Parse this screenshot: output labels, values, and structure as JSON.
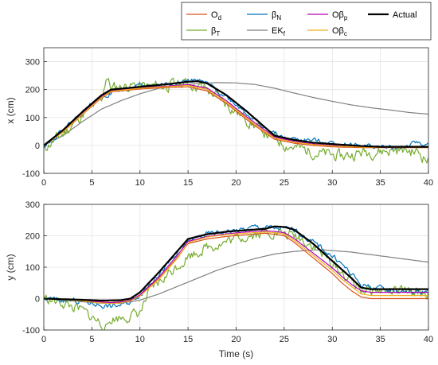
{
  "chart_data": {
    "type": "line",
    "legend": {
      "placement": "top-right",
      "entries": [
        {
          "main": "O",
          "sub": "d",
          "color": "#d95319",
          "width": 1.3
        },
        {
          "main": "β",
          "sub": "N",
          "color": "#0072bd",
          "width": 1.3
        },
        {
          "main": "Oβ",
          "sub": "p",
          "color": "#b300b3",
          "width": 1.3
        },
        {
          "main": "Actual",
          "sub": "",
          "color": "#000000",
          "width": 2.2
        },
        {
          "main": "β",
          "sub": "T",
          "color": "#77ac30",
          "width": 1.3
        },
        {
          "main": "EK",
          "sub": "f",
          "color": "#808080",
          "width": 1.3
        },
        {
          "main": "Oβ",
          "sub": "c",
          "color": "#edb120",
          "width": 1.3
        }
      ]
    },
    "panels": [
      {
        "ylabel": "x (cm)",
        "xlabel": "",
        "xlim": [
          0,
          40
        ],
        "ylim": [
          -100,
          350
        ],
        "xticks": [
          "0",
          "5",
          "10",
          "15",
          "20",
          "25",
          "30",
          "35",
          "40"
        ],
        "yticks": [
          "-100",
          "0",
          "100",
          "200",
          "300"
        ],
        "ytick_values": [
          -100,
          0,
          100,
          200,
          300
        ],
        "grid": true,
        "series": [
          {
            "key": "EKf",
            "color": "#808080",
            "noise": 0,
            "seed": 1,
            "x": [
              0,
              2,
              4,
              6,
              8,
              10,
              12,
              14,
              16,
              18,
              20,
              22,
              24,
              26,
              28,
              30,
              32,
              34,
              36,
              38,
              40
            ],
            "y": [
              0,
              35,
              85,
              130,
              160,
              185,
              205,
              215,
              222,
              225,
              224,
              218,
              205,
              188,
              172,
              158,
              145,
              135,
              127,
              118,
              112
            ]
          },
          {
            "key": "betaT",
            "color": "#77ac30",
            "noise": 22,
            "seed": 11,
            "x": [
              0,
              2,
              4,
              6,
              6.5,
              7,
              9,
              11,
              13,
              15,
              17,
              19,
              21,
              23,
              25,
              27,
              29,
              31,
              33,
              35,
              37,
              39,
              40
            ],
            "y": [
              -10,
              40,
              110,
              160,
              250,
              205,
              215,
              210,
              215,
              225,
              200,
              150,
              95,
              45,
              5,
              -15,
              -30,
              -40,
              -25,
              -20,
              -15,
              -25,
              -55
            ]
          },
          {
            "key": "betaN",
            "color": "#0072bd",
            "noise": 9,
            "seed": 22,
            "x": [
              0,
              2,
              4,
              6,
              8,
              10,
              12,
              14,
              15.5,
              17,
              19,
              21,
              23,
              25,
              27,
              29,
              31,
              33,
              35,
              37,
              39,
              40
            ],
            "y": [
              0,
              55,
              120,
              175,
              200,
              210,
              218,
              225,
              235,
              220,
              175,
              120,
              60,
              25,
              20,
              15,
              5,
              0,
              -5,
              -10,
              10,
              0
            ]
          },
          {
            "key": "Od",
            "color": "#d95319",
            "noise": 0,
            "seed": 2,
            "x": [
              0,
              2,
              4,
              6,
              7,
              10,
              13,
              15,
              17,
              19,
              21,
              23,
              24,
              26,
              28,
              30,
              32,
              34,
              36,
              38,
              40
            ],
            "y": [
              0,
              48,
              110,
              170,
              192,
              202,
              208,
              210,
              195,
              150,
              95,
              45,
              22,
              8,
              0,
              -5,
              -7,
              -8,
              -8,
              -8,
              -8
            ]
          },
          {
            "key": "Obp",
            "color": "#b300b3",
            "noise": 0,
            "seed": 3,
            "x": [
              0,
              2,
              4,
              6,
              7,
              10,
              13,
              15,
              17,
              19,
              21,
              23,
              24,
              26,
              28,
              30,
              32,
              34,
              36,
              38,
              40
            ],
            "y": [
              0,
              50,
              115,
              175,
              196,
              207,
              213,
              218,
              205,
              160,
              105,
              55,
              30,
              15,
              5,
              0,
              -3,
              -4,
              -5,
              -5,
              -5
            ]
          },
          {
            "key": "Obc",
            "color": "#edb120",
            "noise": 0,
            "seed": 4,
            "x": [
              0,
              2,
              4,
              6,
              7,
              10,
              13,
              15,
              17,
              19,
              21,
              23,
              24,
              26,
              28,
              30,
              32,
              34,
              36,
              38,
              40
            ],
            "y": [
              0,
              49,
              112,
              172,
              194,
              205,
              211,
              215,
              200,
              155,
              100,
              50,
              26,
              12,
              3,
              -2,
              -5,
              -6,
              -6,
              -6,
              -6
            ]
          },
          {
            "key": "Actual",
            "color": "#000000",
            "noise": 0,
            "seed": 5,
            "x": [
              0,
              2,
              4,
              6,
              7,
              10,
              13,
              15,
              16,
              17,
              19,
              21,
              23,
              24,
              26,
              28,
              30,
              33,
              35,
              40
            ],
            "y": [
              0,
              55,
              120,
              180,
              200,
              210,
              220,
              228,
              230,
              222,
              180,
              125,
              65,
              35,
              20,
              10,
              5,
              -2,
              -5,
              -5
            ]
          }
        ]
      },
      {
        "ylabel": "y (cm)",
        "xlabel": "Time (s)",
        "xlim": [
          0,
          40
        ],
        "ylim": [
          -100,
          300
        ],
        "xticks": [
          "0",
          "5",
          "10",
          "15",
          "20",
          "25",
          "30",
          "35",
          "40"
        ],
        "yticks": [
          "-100",
          "0",
          "100",
          "200",
          "300"
        ],
        "ytick_values": [
          -100,
          0,
          100,
          200,
          300
        ],
        "grid": true,
        "series": [
          {
            "key": "EKf",
            "color": "#808080",
            "noise": 0,
            "seed": 6,
            "x": [
              0,
              2,
              4,
              6,
              8,
              10,
              12,
              14,
              16,
              18,
              20,
              22,
              24,
              26,
              28,
              29,
              30,
              32,
              34,
              36,
              38,
              40
            ],
            "y": [
              0,
              -5,
              -10,
              -15,
              -15,
              -5,
              15,
              40,
              65,
              90,
              110,
              128,
              142,
              150,
              155,
              155,
              153,
              148,
              140,
              132,
              124,
              116
            ]
          },
          {
            "key": "betaT",
            "color": "#77ac30",
            "noise": 18,
            "seed": 33,
            "x": [
              0,
              2,
              4,
              6,
              6.5,
              7,
              9,
              10,
              11,
              13,
              15,
              17,
              19,
              21,
              23,
              24,
              25,
              26.5,
              28,
              30,
              32,
              33,
              35,
              37,
              39,
              40
            ],
            "y": [
              0,
              -15,
              -40,
              -80,
              -95,
              -65,
              -55,
              -45,
              20,
              80,
              135,
              165,
              180,
              200,
              210,
              212,
              205,
              195,
              170,
              110,
              55,
              30,
              25,
              20,
              20,
              15
            ]
          },
          {
            "key": "betaN",
            "color": "#0072bd",
            "noise": 9,
            "seed": 44,
            "x": [
              0,
              2,
              4,
              6,
              7,
              8,
              9,
              10,
              12,
              14,
              15,
              17,
              19,
              21,
              22,
              24,
              26,
              27,
              29,
              31,
              33,
              35,
              37,
              39,
              40
            ],
            "y": [
              0,
              -5,
              -10,
              -20,
              -25,
              -20,
              -10,
              15,
              80,
              145,
              185,
              205,
              215,
              220,
              230,
              225,
              220,
              200,
              160,
              110,
              45,
              30,
              25,
              20,
              25
            ]
          },
          {
            "key": "Od",
            "color": "#d95319",
            "noise": 0,
            "seed": 7,
            "x": [
              0,
              2,
              4,
              6,
              7,
              8,
              9,
              10,
              12,
              14,
              15,
              17,
              19,
              21,
              23,
              24,
              25,
              26,
              28,
              30,
              31,
              32,
              33,
              34,
              36,
              38,
              40
            ],
            "y": [
              0,
              -3,
              -6,
              -10,
              -12,
              -10,
              -5,
              10,
              65,
              135,
              175,
              190,
              198,
              203,
              208,
              205,
              200,
              180,
              130,
              80,
              50,
              25,
              5,
              0,
              0,
              0,
              0
            ]
          },
          {
            "key": "Obp",
            "color": "#b300b3",
            "noise": 0,
            "seed": 8,
            "x": [
              0,
              2,
              4,
              6,
              7,
              8,
              9,
              10,
              12,
              14,
              15,
              17,
              19,
              21,
              23,
              24,
              25,
              26,
              28,
              30,
              31,
              32,
              33,
              34,
              36,
              38,
              40
            ],
            "y": [
              0,
              -3,
              -6,
              -11,
              -13,
              -11,
              -6,
              12,
              70,
              142,
              182,
              198,
              206,
              212,
              216,
              214,
              210,
              192,
              145,
              98,
              70,
              45,
              25,
              20,
              20,
              20,
              20
            ]
          },
          {
            "key": "Obc",
            "color": "#edb120",
            "noise": 0,
            "seed": 9,
            "x": [
              0,
              2,
              4,
              6,
              7,
              8,
              9,
              10,
              12,
              14,
              15,
              17,
              19,
              21,
              23,
              24,
              25,
              26,
              28,
              30,
              31,
              32,
              33,
              34,
              36,
              38,
              40
            ],
            "y": [
              0,
              -4,
              -8,
              -14,
              -16,
              -14,
              -8,
              8,
              62,
              132,
              178,
              196,
              204,
              208,
              212,
              210,
              206,
              186,
              138,
              90,
              62,
              38,
              15,
              10,
              10,
              10,
              10
            ]
          },
          {
            "key": "Actual",
            "color": "#000000",
            "noise": 0,
            "seed": 10,
            "x": [
              0,
              2,
              4,
              6,
              8,
              9,
              10,
              12,
              14,
              15,
              17,
              19,
              21,
              23,
              24,
              25,
              26,
              28,
              30,
              32,
              33,
              34,
              36,
              38,
              40
            ],
            "y": [
              0,
              -2,
              -4,
              -6,
              -5,
              0,
              20,
              85,
              155,
              190,
              205,
              213,
              218,
              222,
              230,
              228,
              220,
              175,
              120,
              65,
              35,
              30,
              30,
              30,
              30
            ]
          }
        ]
      }
    ]
  }
}
